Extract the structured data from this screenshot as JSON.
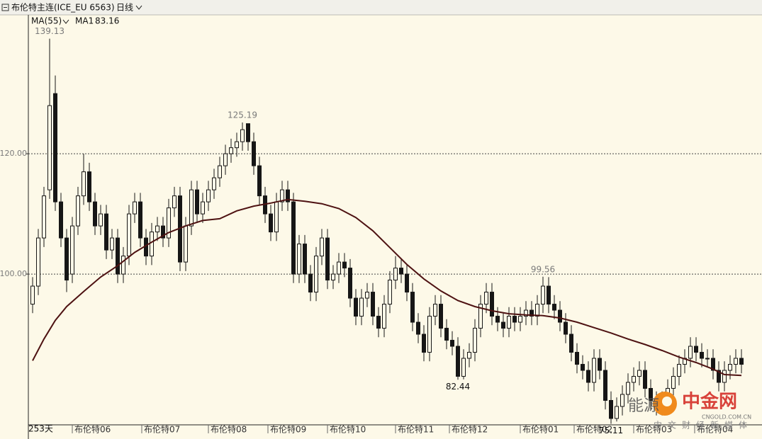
{
  "chart_data": {
    "type": "candlestick",
    "title": "布伦特主连(ICE_EU 6563)",
    "period": "日线",
    "indicator": "MA(55)",
    "period_count": "253天",
    "color": "#161616",
    "grid": true,
    "xlim": [
      -0.5,
      125.5
    ],
    "xticks": [
      {
        "value": 7,
        "label": "布伦特06"
      },
      {
        "value": 19.25,
        "label": "布伦特07"
      },
      {
        "value": 31,
        "label": "布伦特08"
      },
      {
        "value": 41.5,
        "label": "布伦特09"
      },
      {
        "value": 52,
        "label": "布伦特10"
      },
      {
        "value": 64,
        "label": "布伦特11"
      },
      {
        "value": 73.5,
        "label": "布伦特12"
      },
      {
        "value": 86,
        "label": "布伦特01"
      },
      {
        "value": 95.5,
        "label": "布伦特02"
      },
      {
        "value": 106,
        "label": "布伦特03"
      },
      {
        "value": 116.75,
        "label": "布伦特04"
      }
    ],
    "ylim": [
      74.94,
      143.2
    ],
    "yticks": [
      {
        "value": 100,
        "label": "100.00"
      },
      {
        "value": 120,
        "label": "120.00"
      }
    ],
    "open": [
      95,
      98,
      106,
      114,
      130,
      112,
      106,
      100,
      108,
      113,
      117,
      112,
      108,
      110,
      104,
      106,
      100,
      103,
      110,
      112,
      106,
      103,
      107,
      108,
      106,
      111,
      113,
      102,
      108,
      114,
      110,
      112,
      114,
      116,
      118,
      120,
      121,
      122,
      125,
      122,
      118,
      113,
      110,
      107,
      112,
      114,
      112,
      100,
      105,
      100,
      97,
      103,
      106,
      99,
      100,
      102,
      101,
      96,
      93,
      96,
      97,
      93,
      91,
      95,
      99,
      101,
      100,
      97,
      92,
      90,
      87,
      93,
      95,
      91,
      89,
      88,
      83,
      86,
      87,
      91,
      95,
      97,
      93,
      92,
      91,
      93,
      92,
      93,
      94,
      93,
      95,
      98,
      95,
      94,
      92,
      90,
      87,
      85,
      84,
      82,
      86,
      84,
      79,
      76,
      78,
      80,
      82,
      83,
      84,
      81,
      79,
      78,
      79,
      81,
      83,
      85,
      86,
      88,
      87,
      86,
      86,
      84,
      82,
      84,
      85,
      86
    ],
    "high": [
      99.5,
      107.5,
      114.5,
      139.13,
      133,
      113.5,
      107.5,
      109.5,
      114.5,
      120,
      118.5,
      113.5,
      111.5,
      111.5,
      107.5,
      107.5,
      104.5,
      111.5,
      113.5,
      113.5,
      107.5,
      108.5,
      109.5,
      109.5,
      112.5,
      114.5,
      114.5,
      109.5,
      115.5,
      115.5,
      113.5,
      115.5,
      117.5,
      119.5,
      121.5,
      122.5,
      123.5,
      125.19,
      125,
      123.5,
      119.5,
      114.5,
      111.5,
      113.5,
      115.5,
      115.5,
      113.5,
      106.5,
      106.5,
      101.5,
      104.5,
      107.5,
      107.5,
      101.5,
      103.5,
      103.5,
      102.5,
      97.5,
      97.5,
      98.5,
      98.5,
      94.5,
      96.5,
      100.5,
      103,
      102.5,
      101.5,
      98.5,
      93.5,
      91.5,
      94.5,
      96.5,
      96.5,
      92.5,
      90.5,
      89.5,
      87.5,
      88.5,
      92.5,
      96.5,
      98.5,
      98.5,
      94.5,
      93.5,
      94.5,
      94.5,
      94.5,
      95.5,
      95.5,
      96.5,
      99.56,
      99.5,
      96.5,
      95.5,
      93.5,
      91.5,
      88.5,
      86.5,
      85.5,
      87.5,
      87.5,
      85.5,
      80.5,
      79.5,
      81.5,
      83.5,
      84.5,
      85.5,
      85.5,
      82.5,
      80.5,
      80.5,
      82.5,
      84.5,
      86.5,
      87.5,
      89.5,
      89.5,
      88.5,
      87.5,
      87.5,
      85.5,
      85.5,
      86.5,
      87.5,
      87.5
    ],
    "low": [
      93.5,
      96.5,
      104.5,
      112.5,
      110.5,
      104.5,
      97,
      98.5,
      106.5,
      111.5,
      110.5,
      106.5,
      106.5,
      102.5,
      102.5,
      98.5,
      98.5,
      101.5,
      108.5,
      104.5,
      101.5,
      101.5,
      105.5,
      104.5,
      104.5,
      109.5,
      100.5,
      100.5,
      106.5,
      108.5,
      108.5,
      110.5,
      112.5,
      114.5,
      116.5,
      118.5,
      119.5,
      120.5,
      120.5,
      116.5,
      111.5,
      108.5,
      105.5,
      105.5,
      110.5,
      110.5,
      98.5,
      98.5,
      98.5,
      95.5,
      95.5,
      101.5,
      97.5,
      97.5,
      98.5,
      99.5,
      94.5,
      91.5,
      91.5,
      94.5,
      91.5,
      89.5,
      89.5,
      93.5,
      97.5,
      98.5,
      95.5,
      90.5,
      88.5,
      85.5,
      85.5,
      91.5,
      89.5,
      87.5,
      86.5,
      82.44,
      82.5,
      84.5,
      85.5,
      89.5,
      93.5,
      91.5,
      90.5,
      89.5,
      89.5,
      90.5,
      90.5,
      91.5,
      91.5,
      91.5,
      93.5,
      93.5,
      92.5,
      90.5,
      88.5,
      85.5,
      83.5,
      82.5,
      80.5,
      80.5,
      82.5,
      77.5,
      75.11,
      75.5,
      76.5,
      78.5,
      80.5,
      81.5,
      79.5,
      77.5,
      76.5,
      76.5,
      77.5,
      79.5,
      81.5,
      83.5,
      84.5,
      85.5,
      84.5,
      84.5,
      82.5,
      80.5,
      80.5,
      82.5,
      83.5,
      83.5
    ],
    "close": [
      98,
      106,
      113,
      128,
      112,
      106,
      99,
      108,
      113,
      117,
      112,
      108,
      110,
      104,
      106,
      100,
      103,
      110,
      112,
      106,
      103,
      107,
      108,
      106,
      111,
      113,
      102,
      108,
      114,
      110,
      112,
      114,
      116,
      118,
      120,
      121,
      122,
      124,
      122,
      118,
      113,
      110,
      107,
      112,
      114,
      112,
      100,
      105,
      100,
      97,
      103,
      106,
      99,
      100,
      102,
      101,
      96,
      93,
      96,
      97,
      93,
      91,
      95,
      99,
      101,
      100,
      97,
      92,
      90,
      87,
      93,
      95,
      91,
      89,
      88,
      83,
      86,
      87,
      91,
      95,
      97,
      93,
      92,
      91,
      93,
      92,
      93,
      94,
      93,
      95,
      98,
      95,
      94,
      92,
      90,
      87,
      85,
      84,
      82,
      86,
      84,
      79,
      76,
      78,
      80,
      82,
      83,
      84,
      81,
      79,
      78,
      79,
      81,
      83,
      85,
      86,
      88,
      87,
      86,
      86,
      84,
      82,
      84,
      85,
      86,
      85
    ],
    "ma": {
      "name": "MA1",
      "color": "#4e1212",
      "x": [
        0,
        2,
        4,
        6,
        9,
        12,
        15,
        18,
        21,
        24,
        27,
        30,
        33,
        36,
        39,
        42,
        45,
        48,
        51,
        54,
        57,
        60,
        63,
        66,
        69,
        72,
        75,
        78,
        81,
        84,
        87,
        90,
        93,
        96,
        99,
        102,
        105,
        108,
        111,
        114,
        117,
        120,
        122,
        125
      ],
      "values": [
        85.6,
        89.2,
        92.3,
        94.6,
        97.1,
        99.5,
        101.4,
        103.6,
        105.3,
        106.9,
        108,
        108.9,
        109.2,
        110.5,
        111.3,
        111.8,
        112.4,
        112.1,
        111.7,
        110.9,
        109.4,
        107.2,
        104.4,
        101.6,
        99.2,
        97.2,
        95.6,
        94.6,
        93.9,
        93.4,
        93.2,
        93.1,
        92.7,
        92,
        91.1,
        90.2,
        89.2,
        88.3,
        87.3,
        86.2,
        85.3,
        84.2,
        83.3,
        83.16
      ]
    },
    "watermark": {
      "brand": "能源",
      "site": "中金网",
      "domain": "CNGOLD.COM.CN",
      "slogan": "中文财经新媒体"
    }
  }
}
